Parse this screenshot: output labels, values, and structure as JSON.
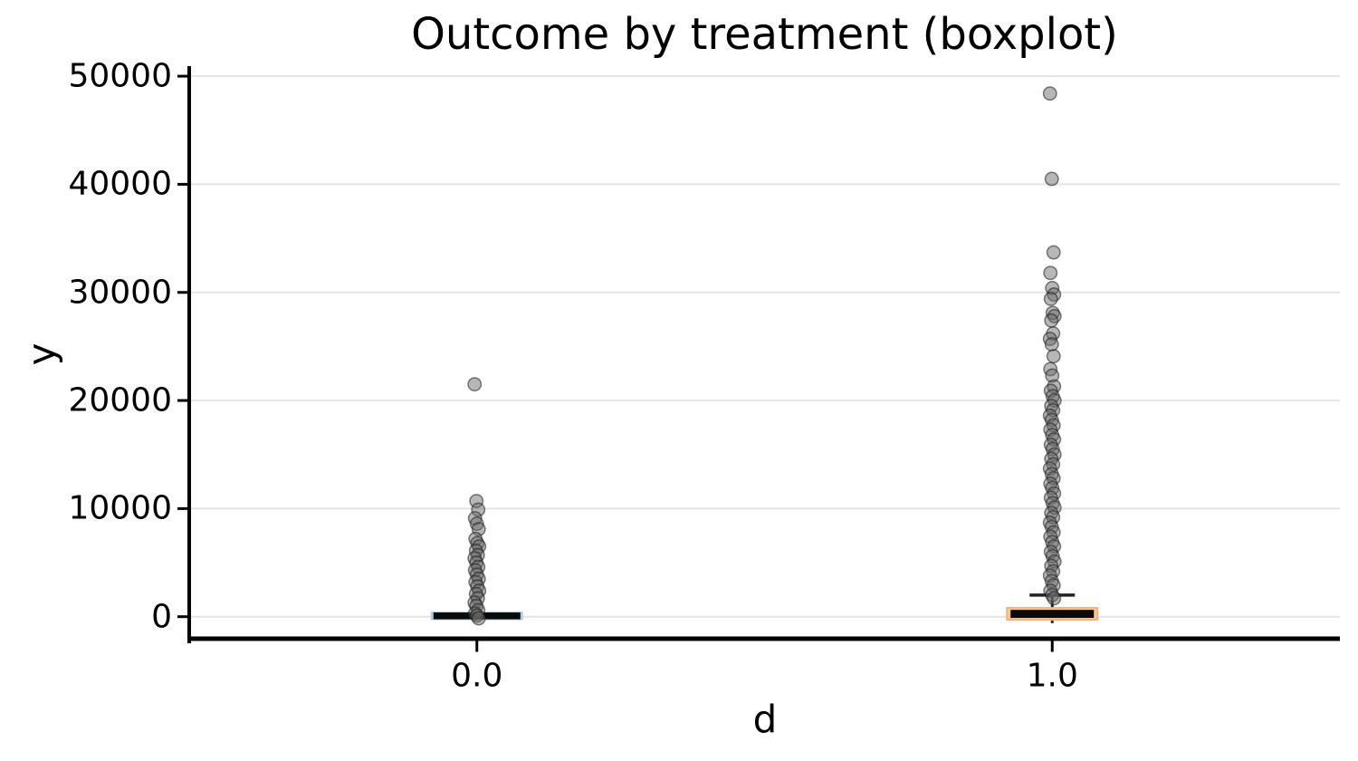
{
  "chart_data": {
    "type": "boxplot",
    "title": "Outcome by treatment (boxplot)",
    "xlabel": "d",
    "ylabel": "y",
    "categories": [
      "0.0",
      "1.0"
    ],
    "yticks": [
      0,
      10000,
      20000,
      30000,
      40000,
      50000
    ],
    "ylim": [
      -2245,
      50930
    ],
    "grid": "horizontal-light-gray",
    "legend": "none",
    "colors": {
      "background": "#ffffff",
      "gridline": "#e4e4e4",
      "spine": "#000000",
      "whisker": "#222222",
      "box_inner": "#0a0a0a",
      "box0_fill": "#aecde5",
      "box1_fill": "#fac896",
      "box1_edge": "#f7b179",
      "outlier_fill": "rgba(105,105,105,0.48)",
      "outlier_edge": "rgba(25,25,25,0.55)"
    },
    "groups": [
      {
        "label": "0.0",
        "position": 0.25,
        "box": {
          "top": 390,
          "bottom": -240,
          "inner_top": 390,
          "inner_bottom": -240,
          "inner_inset_x": 2,
          "fill": "#aecde5",
          "edge": "#aecde5",
          "median": 80
        },
        "whiskers": {
          "high": null,
          "low": null,
          "cap_high": false,
          "cap_low": false
        },
        "outliers": [
          21500,
          10700,
          9900,
          9100,
          8600,
          8100,
          7200,
          6800,
          6500,
          6100,
          5700,
          5400,
          5000,
          4600,
          4300,
          3900,
          3500,
          3200,
          2800,
          2400,
          2100,
          1700,
          1300,
          1000,
          600,
          300,
          100,
          -150
        ]
      },
      {
        "label": "1.0",
        "position": 0.75,
        "box": {
          "top": 810,
          "bottom": -280,
          "inner_top": 630,
          "inner_bottom": -110,
          "inner_inset_x": 4,
          "fill": "#fac896",
          "edge": "#f7b179",
          "median": 270
        },
        "whiskers": {
          "high": 2000,
          "low": -600,
          "cap_high": true,
          "cap_low": false
        },
        "outliers": [
          48400,
          40500,
          33700,
          31800,
          30400,
          29800,
          29400,
          28100,
          27800,
          27400,
          26200,
          25700,
          25200,
          24100,
          22900,
          22300,
          21300,
          20900,
          20400,
          20000,
          19500,
          19100,
          18600,
          18200,
          17700,
          17300,
          16800,
          16400,
          15900,
          15500,
          15000,
          14600,
          14100,
          13700,
          13200,
          12800,
          12300,
          11900,
          11400,
          11000,
          10500,
          10100,
          9600,
          9200,
          8700,
          8300,
          7800,
          7400,
          6900,
          6500,
          6000,
          5600,
          5100,
          4700,
          4200,
          3800,
          3300,
          2900,
          2400,
          2000,
          1700
        ]
      }
    ]
  }
}
